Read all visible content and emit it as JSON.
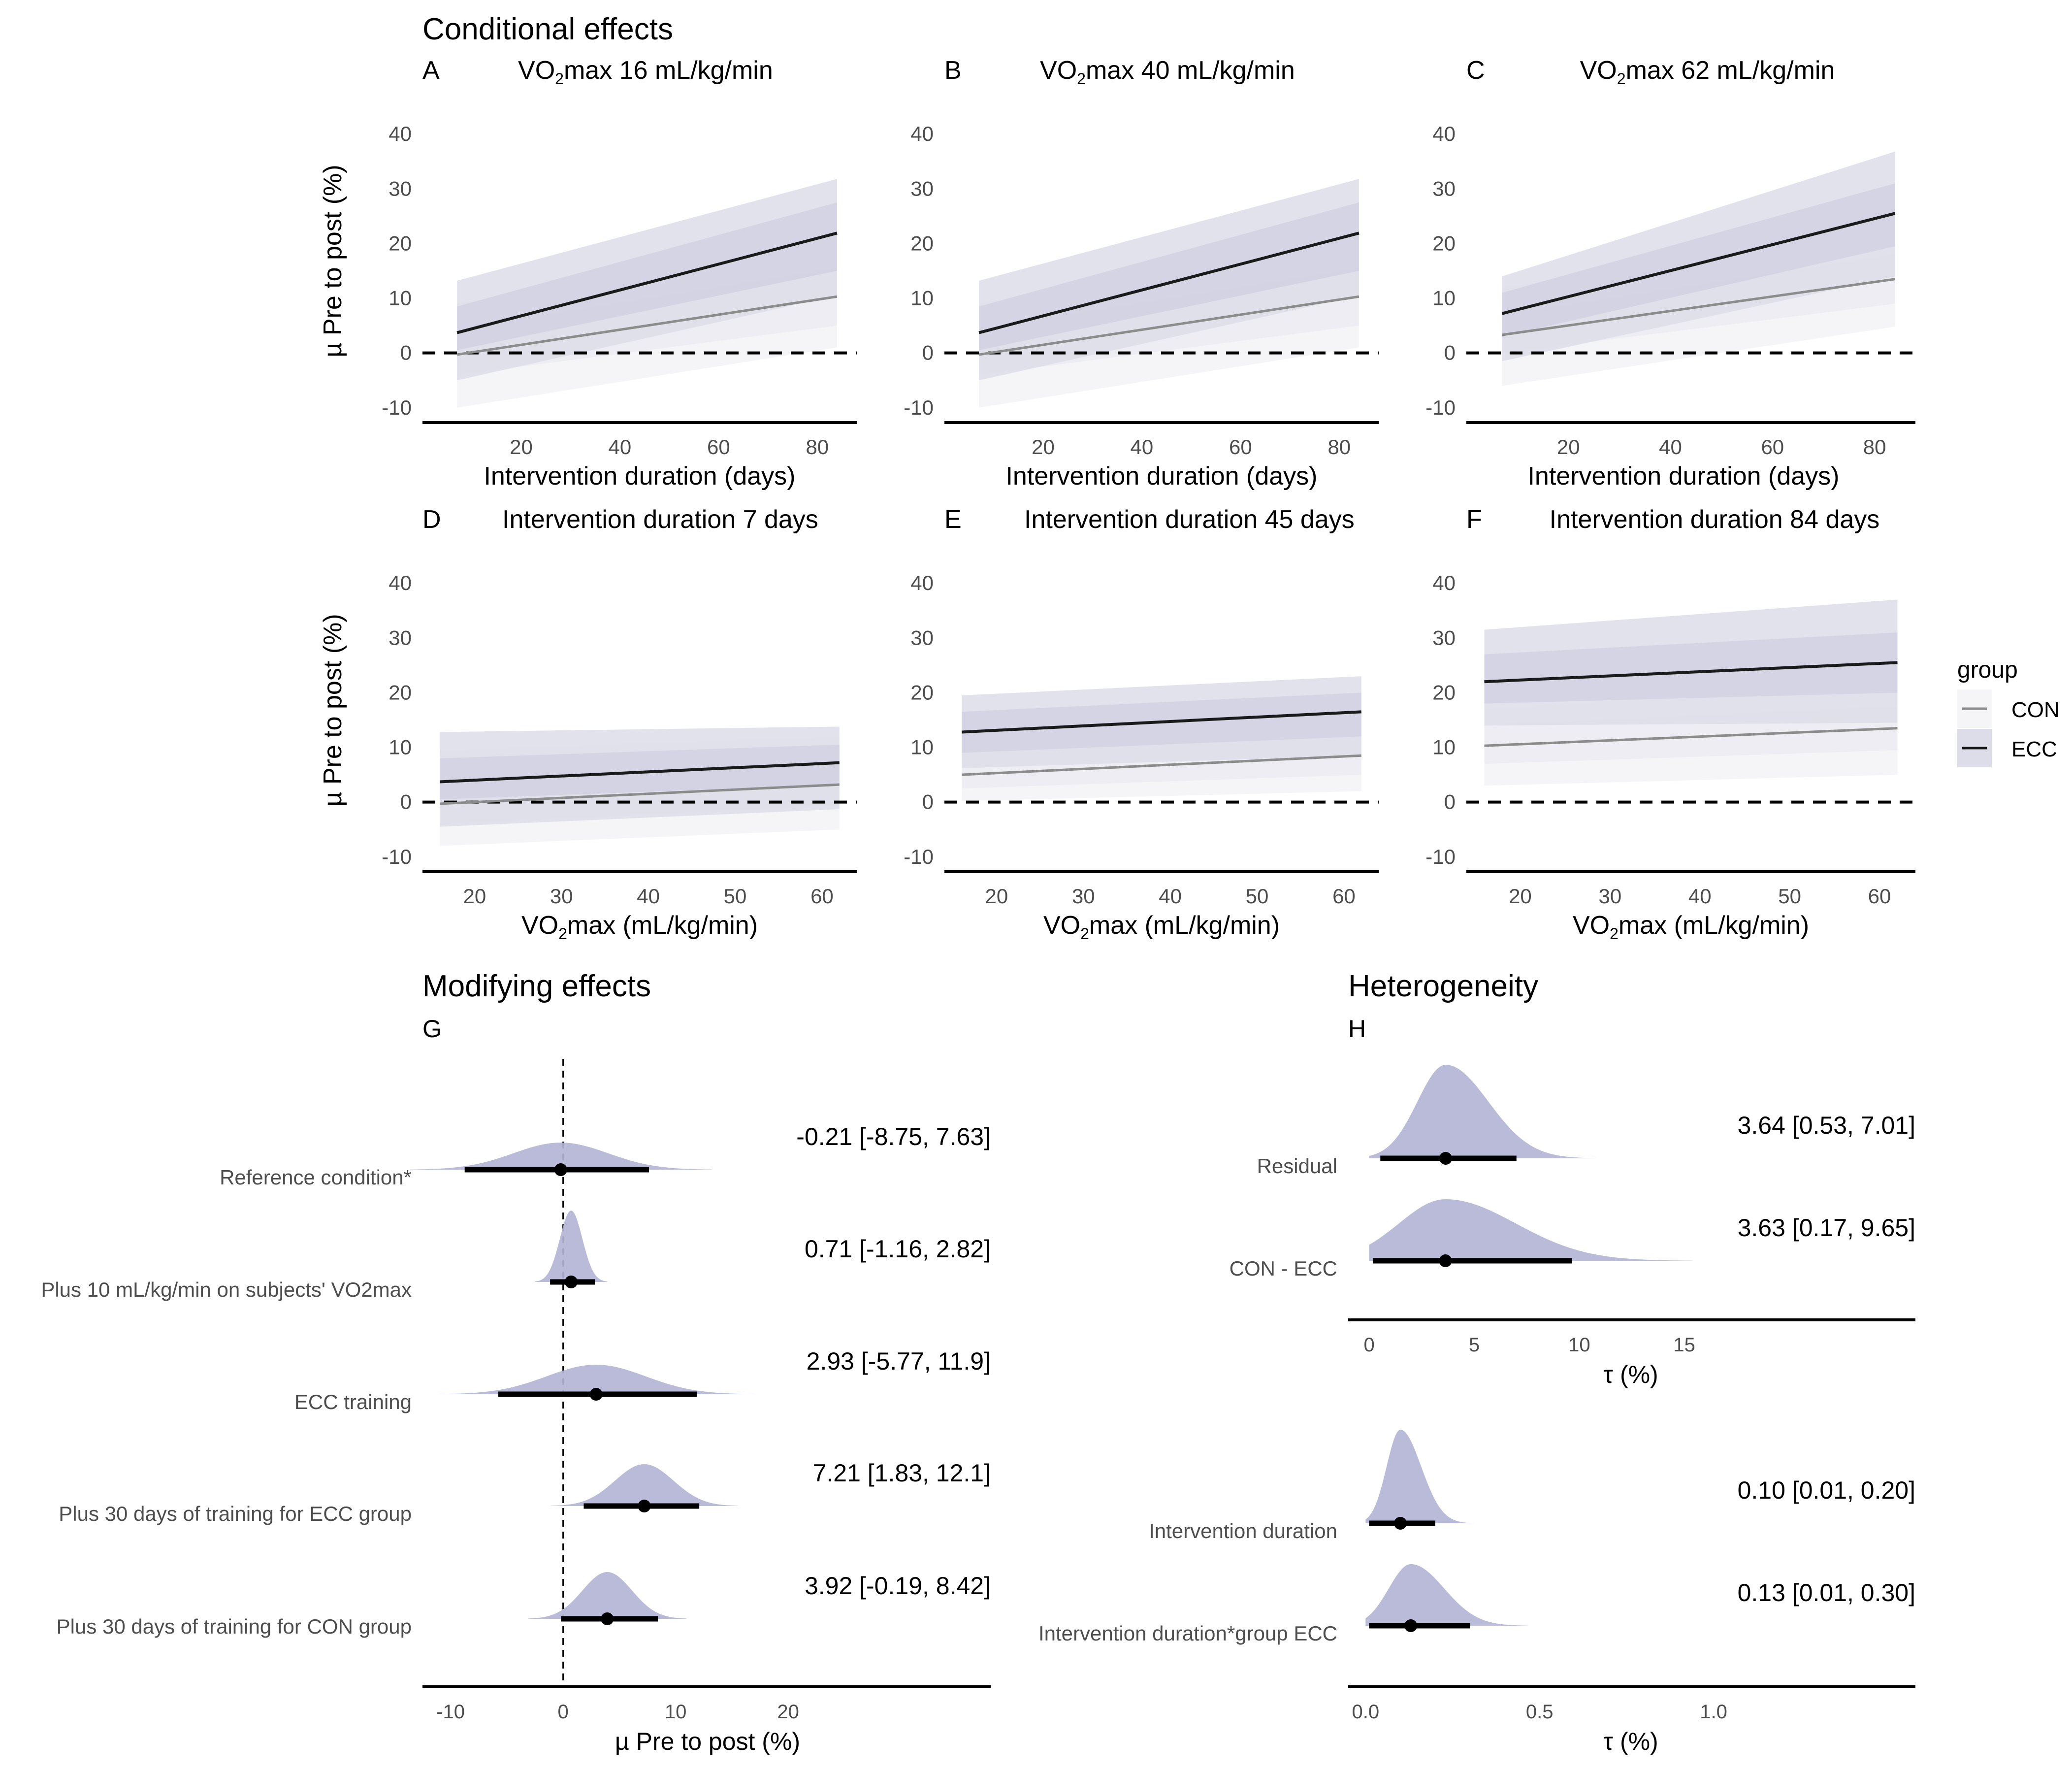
{
  "colors": {
    "ecc_line": "#1a1a1a",
    "con_line": "#8c8c8c",
    "ecc_band": "#dddde9",
    "con_band": "#f5f5f8",
    "ecc_band_inner": "#cfcfe2",
    "con_band_inner": "#ececf2",
    "density": "#b4b4d6",
    "axis": "#000000"
  },
  "sections": {
    "conditional": "Conditional effects",
    "modifying": "Modifying effects",
    "heterogeneity": "Heterogeneity"
  },
  "legend": {
    "title": "group",
    "items": [
      "CON",
      "ECC"
    ]
  },
  "chart_data": [
    {
      "id": "A",
      "type": "line",
      "title_parts": [
        "VO",
        "2",
        "max 16 mL/kg/min"
      ],
      "xlabel": "Intervention duration (days)",
      "xlabel_parts": null,
      "ylabel": "µ Pre to post (%)",
      "xlim": [
        0,
        88
      ],
      "ylim": [
        -12,
        42
      ],
      "xticks": [
        20,
        40,
        60,
        80
      ],
      "yticks": [
        -10,
        0,
        10,
        20,
        30,
        40
      ],
      "x": [
        7,
        84
      ],
      "reference_line_y": 0,
      "series": [
        {
          "name": "ECC",
          "y": [
            3.7,
            21.9
          ],
          "lower": [
            -5,
            10.5
          ],
          "upper": [
            13.2,
            31.8
          ],
          "inner_lower": [
            0.5,
            15
          ],
          "inner_upper": [
            8.5,
            27.5
          ]
        },
        {
          "name": "CON",
          "y": [
            -0.3,
            10.3
          ],
          "lower": [
            -10,
            1
          ],
          "upper": [
            9,
            20.5
          ],
          "inner_lower": [
            -4,
            5
          ],
          "inner_upper": [
            4.5,
            15.5
          ]
        }
      ]
    },
    {
      "id": "B",
      "type": "line",
      "title_parts": [
        "VO",
        "2",
        "max 40 mL/kg/min"
      ],
      "xlabel": "Intervention duration (days)",
      "xlabel_parts": null,
      "ylabel": "",
      "xlim": [
        0,
        88
      ],
      "ylim": [
        -12,
        42
      ],
      "xticks": [
        20,
        40,
        60,
        80
      ],
      "yticks": [
        -10,
        0,
        10,
        20,
        30,
        40
      ],
      "x": [
        7,
        84
      ],
      "reference_line_y": 0,
      "series": [
        {
          "name": "ECC",
          "y": [
            3.7,
            21.9
          ],
          "lower": [
            -5,
            10.5
          ],
          "upper": [
            13.2,
            31.8
          ],
          "inner_lower": [
            0.5,
            15
          ],
          "inner_upper": [
            8.5,
            27.5
          ]
        },
        {
          "name": "CON",
          "y": [
            -0.3,
            10.3
          ],
          "lower": [
            -10,
            1
          ],
          "upper": [
            9,
            20.5
          ],
          "inner_lower": [
            -4,
            5
          ],
          "inner_upper": [
            4.5,
            15.5
          ]
        }
      ]
    },
    {
      "id": "C",
      "type": "line",
      "title_parts": [
        "VO",
        "2",
        "max 62 mL/kg/min"
      ],
      "xlabel": "Intervention duration (days)",
      "xlabel_parts": null,
      "ylabel": "",
      "xlim": [
        0,
        88
      ],
      "ylim": [
        -12,
        42
      ],
      "xticks": [
        20,
        40,
        60,
        80
      ],
      "yticks": [
        -10,
        0,
        10,
        20,
        30,
        40
      ],
      "x": [
        7,
        84
      ],
      "reference_line_y": 0,
      "series": [
        {
          "name": "ECC",
          "y": [
            7.2,
            25.5
          ],
          "lower": [
            -1.5,
            14
          ],
          "upper": [
            14,
            36.8
          ],
          "inner_lower": [
            3,
            19.5
          ],
          "inner_upper": [
            11,
            31
          ]
        },
        {
          "name": "CON",
          "y": [
            3.3,
            13.5
          ],
          "lower": [
            -6,
            4.8
          ],
          "upper": [
            12,
            22
          ],
          "inner_lower": [
            0,
            9
          ],
          "inner_upper": [
            7,
            18
          ]
        }
      ]
    },
    {
      "id": "D",
      "type": "line",
      "title_parts": [
        "Intervention duration 7 days"
      ],
      "xlabel": "VO2max (mL/kg/min)",
      "xlabel_parts": [
        "VO",
        "2",
        "max (mL/kg/min)"
      ],
      "ylabel": "µ Pre to post (%)",
      "xlim": [
        14,
        64
      ],
      "ylim": [
        -12,
        42
      ],
      "xticks": [
        20,
        30,
        40,
        50,
        60
      ],
      "yticks": [
        -10,
        0,
        10,
        20,
        30,
        40
      ],
      "x": [
        16,
        62
      ],
      "reference_line_y": 0,
      "series": [
        {
          "name": "ECC",
          "y": [
            3.7,
            7.2
          ],
          "lower": [
            -4.5,
            -1.3
          ],
          "upper": [
            12.8,
            13.8
          ],
          "inner_lower": [
            0.5,
            3.2
          ],
          "inner_upper": [
            8,
            10.5
          ]
        },
        {
          "name": "CON",
          "y": [
            -0.3,
            3.2
          ],
          "lower": [
            -8,
            -5
          ],
          "upper": [
            9.5,
            12
          ],
          "inner_lower": [
            -4,
            -0.5
          ],
          "inner_upper": [
            4,
            7
          ]
        }
      ]
    },
    {
      "id": "E",
      "type": "line",
      "title_parts": [
        "Intervention duration 45 days"
      ],
      "xlabel": "VO2max (mL/kg/min)",
      "xlabel_parts": [
        "VO",
        "2",
        "max (mL/kg/min)"
      ],
      "ylabel": "",
      "xlim": [
        14,
        64
      ],
      "ylim": [
        -12,
        42
      ],
      "xticks": [
        20,
        30,
        40,
        50,
        60
      ],
      "yticks": [
        -10,
        0,
        10,
        20,
        30,
        40
      ],
      "x": [
        16,
        62
      ],
      "reference_line_y": 0,
      "series": [
        {
          "name": "ECC",
          "y": [
            12.8,
            16.5
          ],
          "lower": [
            6.2,
            8.5
          ],
          "upper": [
            19.5,
            23
          ],
          "inner_lower": [
            9,
            12
          ],
          "inner_upper": [
            16.5,
            20
          ]
        },
        {
          "name": "CON",
          "y": [
            5,
            8.5
          ],
          "lower": [
            0.2,
            2
          ],
          "upper": [
            13.5,
            16
          ],
          "inner_lower": [
            2.5,
            5
          ],
          "inner_upper": [
            9,
            12
          ]
        }
      ]
    },
    {
      "id": "F",
      "type": "line",
      "title_parts": [
        "Intervention duration 84 days"
      ],
      "xlabel": "VO2max (mL/kg/min)",
      "xlabel_parts": [
        "VO",
        "2",
        "max (mL/kg/min)"
      ],
      "ylabel": "",
      "xlim": [
        14,
        64
      ],
      "ylim": [
        -12,
        42
      ],
      "xticks": [
        20,
        30,
        40,
        50,
        60
      ],
      "yticks": [
        -10,
        0,
        10,
        20,
        30,
        40
      ],
      "x": [
        16,
        62
      ],
      "reference_line_y": 0,
      "series": [
        {
          "name": "ECC",
          "y": [
            22,
            25.5
          ],
          "lower": [
            14,
            14.5
          ],
          "upper": [
            31.5,
            37
          ],
          "inner_lower": [
            18,
            20
          ],
          "inner_upper": [
            27,
            31
          ]
        },
        {
          "name": "CON",
          "y": [
            10.3,
            13.5
          ],
          "lower": [
            3,
            5
          ],
          "upper": [
            17,
            22
          ],
          "inner_lower": [
            7,
            9.5
          ],
          "inner_upper": [
            14,
            17.5
          ]
        }
      ]
    },
    {
      "id": "G",
      "type": "density",
      "xlabel": "µ Pre to post (%)",
      "xlim": [
        -12.5,
        38
      ],
      "xticks": [
        -10,
        0,
        10,
        20
      ],
      "reference_line_x": 0,
      "rows": [
        {
          "label": "Reference condition*",
          "median": -0.21,
          "lower": -8.75,
          "upper": 7.63,
          "sd": 4.2,
          "annotation": "-0.21 [-8.75, 7.63]"
        },
        {
          "label": "Plus 10 mL/kg/min on subjects' VO2max",
          "median": 0.71,
          "lower": -1.16,
          "upper": 2.82,
          "sd": 1.0,
          "annotation": "0.71 [-1.16, 2.82]"
        },
        {
          "label": "ECC training",
          "median": 2.93,
          "lower": -5.77,
          "upper": 11.9,
          "sd": 4.4,
          "annotation": "2.93 [-5.77, 11.9]"
        },
        {
          "label": "Plus 30 days of training for ECC group",
          "median": 7.21,
          "lower": 1.83,
          "upper": 12.1,
          "sd": 2.6,
          "annotation": "7.21 [1.83, 12.1]"
        },
        {
          "label": "Plus 30 days of training for CON group",
          "median": 3.92,
          "lower": -0.19,
          "upper": 8.42,
          "sd": 2.2,
          "annotation": "3.92 [-0.19, 8.42]"
        }
      ]
    },
    {
      "id": "H1",
      "type": "density",
      "xlabel": "τ (%)",
      "xlim": [
        -1,
        26
      ],
      "xticks": [
        0,
        5,
        10,
        15
      ],
      "rows": [
        {
          "label": "Residual",
          "median": 3.64,
          "lower": 0.53,
          "upper": 7.01,
          "sd": 1.7,
          "annotation": "3.64 [0.53, 7.01]",
          "bound0": true
        },
        {
          "label": "CON - ECC",
          "median": 3.63,
          "lower": 0.17,
          "upper": 9.65,
          "sd": 2.8,
          "annotation": "3.63 [0.17, 9.65]",
          "bound0": true
        }
      ]
    },
    {
      "id": "H2",
      "type": "density",
      "xlabel": "τ (%)",
      "xlim": [
        -0.05,
        1.58
      ],
      "xticks": [
        0.0,
        0.5,
        1.0
      ],
      "rows": [
        {
          "label": "Intervention duration",
          "median": 0.1,
          "lower": 0.01,
          "upper": 0.2,
          "sd": 0.05,
          "annotation": "0.10 [0.01, 0.20]",
          "bound0": true
        },
        {
          "label": "Intervention duration*group ECC",
          "median": 0.13,
          "lower": 0.01,
          "upper": 0.3,
          "sd": 0.08,
          "annotation": "0.13 [0.01, 0.30]",
          "bound0": true
        }
      ]
    }
  ]
}
